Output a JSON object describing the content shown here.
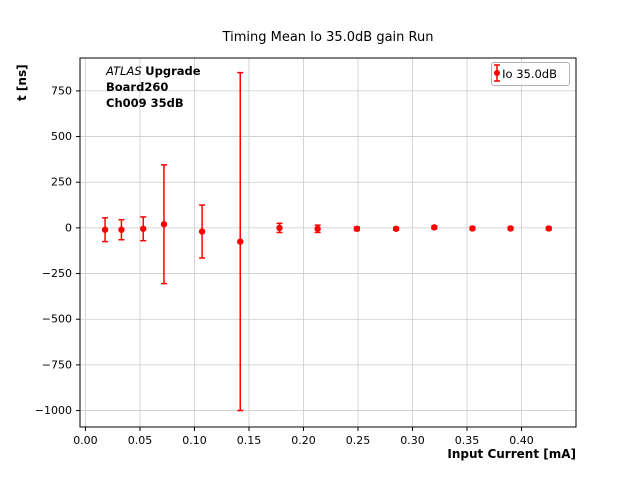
{
  "chart_data": {
    "type": "scatter",
    "title": "Timing Mean Io 35.0dB gain Run",
    "xlabel": "Input Current [mA]",
    "ylabel": "t [ns]",
    "legend_label": "Io 35.0dB",
    "legend_position": "upper right",
    "grid": true,
    "series_color": "#ff0000",
    "xlim": [
      -0.005,
      0.45
    ],
    "ylim": [
      -1090,
      930
    ],
    "x_ticks": [
      0.0,
      0.05,
      0.1,
      0.15,
      0.2,
      0.25,
      0.3,
      0.35,
      0.4
    ],
    "y_ticks": [
      750,
      500,
      250,
      0,
      -250,
      -500,
      -750,
      -1000
    ],
    "annotation": {
      "experiment": "ATLAS",
      "upgrade": "Upgrade",
      "board": "Board260",
      "channel": "Ch009 35dB"
    },
    "points": [
      {
        "x": 0.018,
        "y": -10,
        "yerr": 65
      },
      {
        "x": 0.033,
        "y": -10,
        "yerr": 55
      },
      {
        "x": 0.053,
        "y": -5,
        "yerr": 65
      },
      {
        "x": 0.072,
        "y": 20,
        "yerr": 325
      },
      {
        "x": 0.107,
        "y": -20,
        "yerr": 145
      },
      {
        "x": 0.142,
        "y": -75,
        "yerr": 925
      },
      {
        "x": 0.178,
        "y": 0,
        "yerr": 25
      },
      {
        "x": 0.213,
        "y": -5,
        "yerr": 20
      },
      {
        "x": 0.249,
        "y": -5,
        "yerr": 10
      },
      {
        "x": 0.285,
        "y": -5,
        "yerr": 8
      },
      {
        "x": 0.32,
        "y": 3,
        "yerr": 8
      },
      {
        "x": 0.355,
        "y": -3,
        "yerr": 8
      },
      {
        "x": 0.39,
        "y": -3,
        "yerr": 8
      },
      {
        "x": 0.425,
        "y": -3,
        "yerr": 8
      }
    ]
  }
}
